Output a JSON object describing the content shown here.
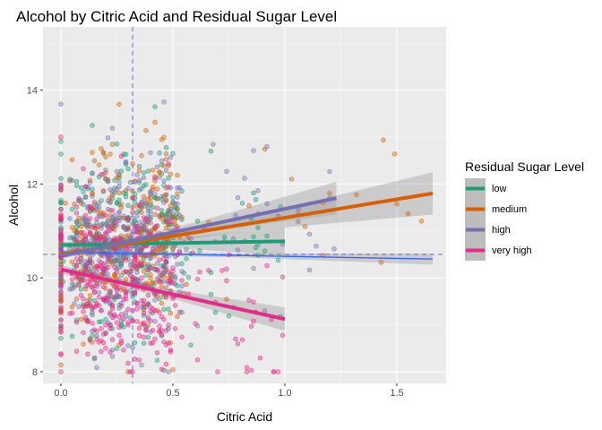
{
  "chart_data": {
    "type": "scatter",
    "title": "Alcohol by Citric Acid and Residual Sugar Level",
    "xlabel": "Citric Acid",
    "ylabel": "Alcohol",
    "xlim": [
      -0.08,
      1.72
    ],
    "ylim": [
      7.75,
      15.35
    ],
    "x_ticks": [
      {
        "value": 0.0,
        "label": "0.0"
      },
      {
        "value": 0.5,
        "label": "0.5"
      },
      {
        "value": 1.0,
        "label": "1.0"
      },
      {
        "value": 1.5,
        "label": "1.5"
      }
    ],
    "y_ticks": [
      {
        "value": 8,
        "label": "8"
      },
      {
        "value": 10,
        "label": "10"
      },
      {
        "value": 12,
        "label": "12"
      },
      {
        "value": 14,
        "label": "14"
      }
    ],
    "grid": true,
    "legend": {
      "title": "Residual Sugar Level",
      "placement": "right"
    },
    "series": [
      {
        "name": "low",
        "color": "#1b9e77",
        "trend": {
          "x": [
            0.0,
            1.0
          ],
          "y": [
            10.7,
            10.78
          ]
        }
      },
      {
        "name": "medium",
        "color": "#d95f02",
        "trend": {
          "x": [
            0.0,
            1.66
          ],
          "y": [
            10.5,
            11.8
          ]
        }
      },
      {
        "name": "high",
        "color": "#7570b3",
        "trend": {
          "x": [
            0.0,
            1.23
          ],
          "y": [
            10.47,
            11.7
          ]
        }
      },
      {
        "name": "very high",
        "color": "#e7298a",
        "trend": {
          "x": [
            0.0,
            1.0
          ],
          "y": [
            10.18,
            9.12
          ]
        }
      }
    ],
    "overall_trend": {
      "color": "#3366ff",
      "x": [
        0.0,
        1.66
      ],
      "y": [
        10.55,
        10.4
      ]
    },
    "reference_lines": {
      "color": "#6b6bd6",
      "x_mean": 0.32,
      "y_mean": 10.5
    }
  }
}
